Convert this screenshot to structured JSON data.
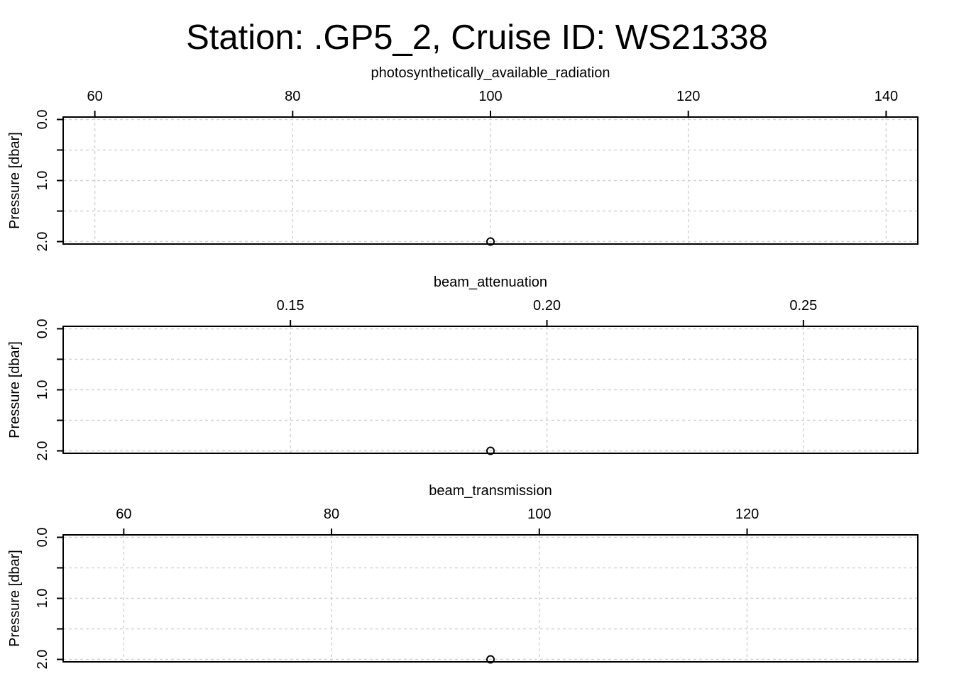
{
  "chart_data": [
    {
      "type": "scatter",
      "title": "Station: .GP5_2, Cruise ID: WS21338",
      "xlabel": "photosynthetically_available_radiation",
      "ylabel": "Pressure [dbar]",
      "xlim": [
        56.8,
        143.2
      ],
      "ylim": [
        2.04,
        -0.04
      ],
      "y_reversed": true,
      "xticks": [
        "60",
        "80",
        "100",
        "120",
        "140"
      ],
      "yticks": [
        "0.0",
        "1.0",
        "2.0"
      ],
      "grid": true,
      "points": [
        {
          "x": 100,
          "y": 2.0
        }
      ]
    },
    {
      "type": "scatter",
      "xlabel": "beam_attenuation",
      "ylabel": "Pressure [dbar]",
      "xlim": [
        0.1057,
        0.2723
      ],
      "ylim": [
        2.04,
        -0.04
      ],
      "y_reversed": true,
      "xticks": [
        "0.15",
        "0.20",
        "0.25"
      ],
      "yticks": [
        "0.0",
        "1.0",
        "2.0"
      ],
      "grid": true,
      "points": [
        {
          "x": 0.189,
          "y": 2.0
        }
      ]
    },
    {
      "type": "scatter",
      "xlabel": "beam_transmission",
      "ylabel": "Pressure [dbar]",
      "xlim": [
        54.17,
        136.43
      ],
      "ylim": [
        2.04,
        -0.04
      ],
      "y_reversed": true,
      "xticks": [
        "60",
        "80",
        "100",
        "120"
      ],
      "yticks": [
        "0.0",
        "1.0",
        "2.0"
      ],
      "grid": true,
      "points": [
        {
          "x": 95.3,
          "y": 2.0
        }
      ]
    }
  ]
}
